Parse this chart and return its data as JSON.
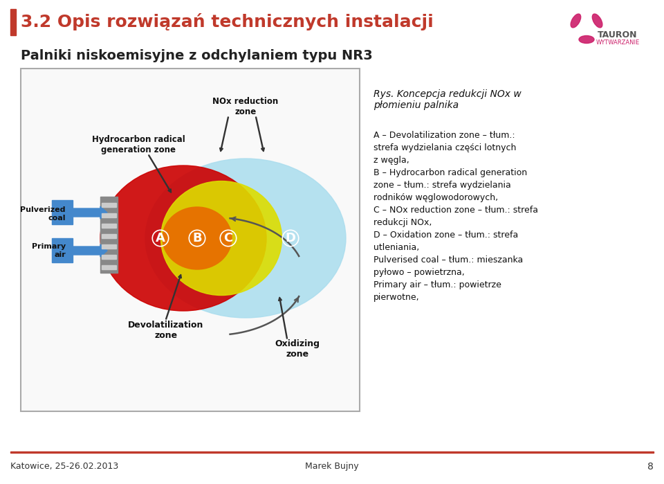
{
  "title": "3.2 Opis rozwiązań technicznych instalacji",
  "subtitle": "Palniki niskoemisyjne z odchylaniem typu NR3",
  "title_color": "#c0392b",
  "title_bar_color": "#c0392b",
  "bg_color": "#ffffff",
  "footer_line_color": "#c0392b",
  "footer_left": "Katowice, 25-26.02.2013",
  "footer_right": "Marek Bujny",
  "footer_page": "8",
  "rys_title": "Rys. Koncepcja redukcji NOx w\npłomieniu palnika",
  "description": "A – Devolatilization zone – tłum.:\nstrefa wydzielania części lotnych\nz węgla,\nB – Hydrocarbon radical generation\nzone – tłum.: strefa wydzielania\nrodników węglowodorowych,\nC – NOx reduction zone – tłum.: strefa\nredukcji NOx,\nD – Oxidation zone – tłum.: strefa\nutleniania,\nPulverised coal – tłum.: mieszanka\npyłowo – powietrzna,\nPrimary air – tłum.: powietrze\npierwotnе,",
  "tauron_color": "#cc1f6a",
  "tauron_text_color": "#555555",
  "zone_A_color": "#cc0000",
  "zone_B_color": "#e67300",
  "zone_C_color": "#dddd00",
  "zone_D_color": "#aaddee",
  "label_box_color": "#ffffff"
}
